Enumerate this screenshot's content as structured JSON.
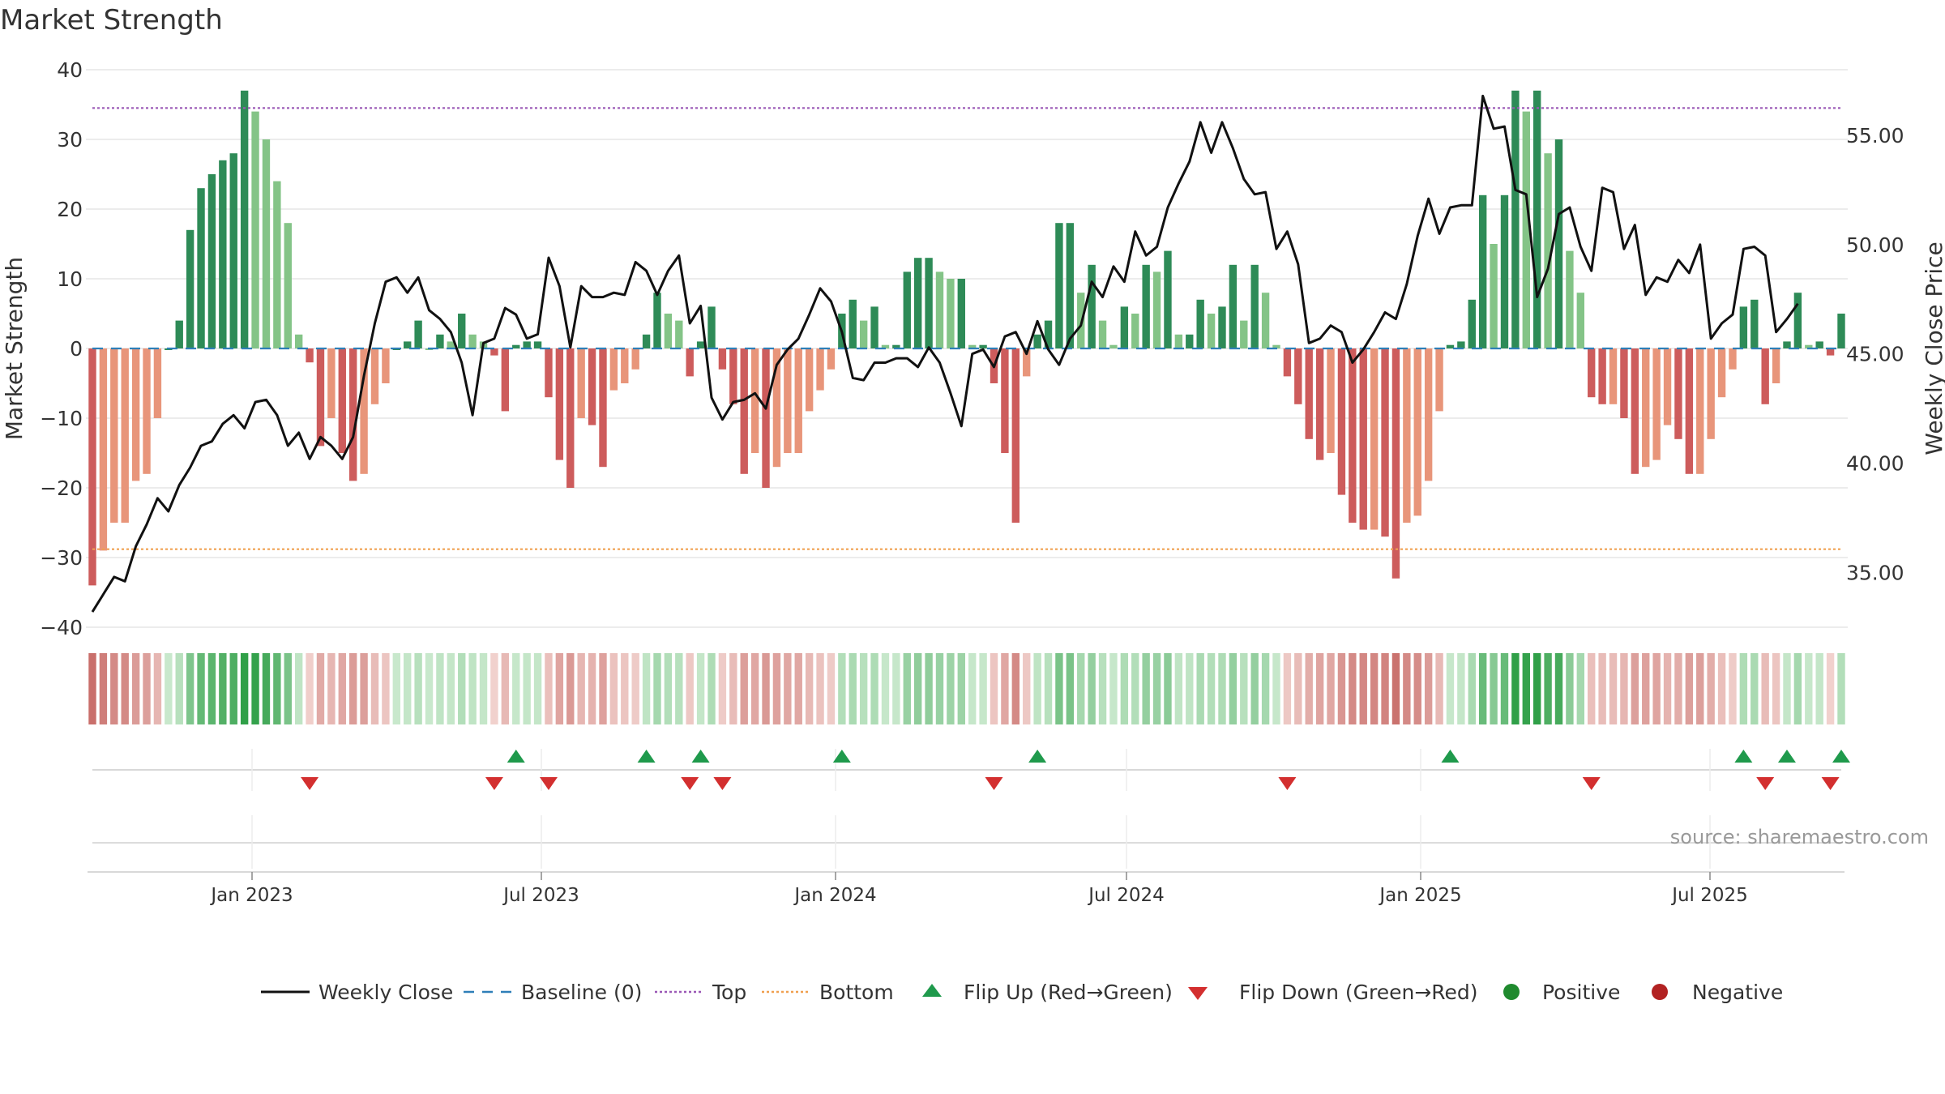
{
  "chart_data": {
    "type": "bar",
    "title": "Market Strength",
    "ylabel": "Market Strength",
    "y2label": "Weekly Close Price",
    "ylim": [
      -40,
      40
    ],
    "y2lim": [
      32.5,
      58.0
    ],
    "yticks": [
      "40",
      "30",
      "20",
      "10",
      "0",
      "−10",
      "−20",
      "−30",
      "−40"
    ],
    "y2ticks": [
      "55.00",
      "50.00",
      "45.00",
      "40.00",
      "35.00"
    ],
    "xticks": [
      "Jan 2023",
      "Jul 2023",
      "Jan 2024",
      "Jul 2024",
      "Jan 2025",
      "Jul 2025"
    ],
    "top_line": 34.5,
    "bottom_line": -28.8,
    "source": "source: sharemaestro.com",
    "legend": [
      "Weekly Close",
      "Baseline (0)",
      "Top",
      "Bottom",
      "Flip Up (Red→Green)",
      "Flip Down (Green→Red)",
      "Positive",
      "Negative"
    ],
    "weekly_strength": [
      -34,
      -29,
      -25,
      -25,
      -19,
      -18,
      -10,
      0,
      4,
      17,
      23,
      25,
      27,
      28,
      37,
      34,
      30,
      24,
      18,
      2,
      -2,
      -14,
      -10,
      -15,
      -19,
      -18,
      -8,
      -5,
      0,
      1,
      4,
      0,
      2,
      1,
      5,
      2,
      1,
      -1,
      -9,
      0.5,
      1,
      1,
      -7,
      -16,
      -20,
      -10,
      -11,
      -17,
      -6,
      -5,
      -3,
      2,
      8,
      5,
      4,
      -4,
      1,
      6,
      -3,
      -8,
      -18,
      -15,
      -20,
      -17,
      -15,
      -15,
      -9,
      -6,
      -3,
      5,
      7,
      4,
      6,
      0.5,
      0.5,
      11,
      13,
      13,
      11,
      10,
      10,
      0.5,
      0.5,
      -5,
      -15,
      -25,
      -4,
      2,
      4,
      18,
      18,
      8,
      12,
      4,
      0.5,
      6,
      5,
      12,
      11,
      14,
      2,
      2,
      7,
      5,
      6,
      12,
      4,
      12,
      8,
      0.5,
      -4,
      -8,
      -13,
      -16,
      -15,
      -21,
      -25,
      -26,
      -26,
      -27,
      -33,
      -25,
      -24,
      -19,
      -9,
      0.5,
      1,
      7,
      22,
      15,
      22,
      37,
      34,
      37,
      28,
      30,
      14,
      8,
      -7,
      -8,
      -8,
      -10,
      -18,
      -17,
      -16,
      -11,
      -13,
      -18,
      -18,
      -13,
      -7,
      -3,
      6,
      7,
      -8,
      -5,
      1,
      8,
      0.5,
      1,
      -1,
      5
    ],
    "weekly_close": [
      33.2,
      34.0,
      34.8,
      34.6,
      36.2,
      37.2,
      38.4,
      37.8,
      39.0,
      39.8,
      40.8,
      41.0,
      41.8,
      42.2,
      41.6,
      42.8,
      42.9,
      42.2,
      40.8,
      41.4,
      40.2,
      41.2,
      40.8,
      40.2,
      41.2,
      44.0,
      46.4,
      48.3,
      48.5,
      47.8,
      48.5,
      47.0,
      46.6,
      46.0,
      44.6,
      42.2,
      45.5,
      45.7,
      47.1,
      46.8,
      45.7,
      45.9,
      49.4,
      48.1,
      45.3,
      48.1,
      47.6,
      47.6,
      47.8,
      47.7,
      49.2,
      48.8,
      47.7,
      48.8,
      49.5,
      46.4,
      47.2,
      43.0,
      42.0,
      42.8,
      42.9,
      43.2,
      42.5,
      44.5,
      45.2,
      45.7,
      46.8,
      48.0,
      47.4,
      46.0,
      43.9,
      43.8,
      44.6,
      44.6,
      44.8,
      44.8,
      44.4,
      45.3,
      44.6,
      43.2,
      41.7,
      45.0,
      45.2,
      44.4,
      45.8,
      46.0,
      45.0,
      46.5,
      45.2,
      44.5,
      45.7,
      46.3,
      48.3,
      47.6,
      49.0,
      48.3,
      50.6,
      49.5,
      49.9,
      51.7,
      52.8,
      53.8,
      55.6,
      54.2,
      55.6,
      54.4,
      53.0,
      52.3,
      52.4,
      49.8,
      50.6,
      49.1,
      45.5,
      45.7,
      46.3,
      46.0,
      44.6,
      45.2,
      46.0,
      46.9,
      46.6,
      48.2,
      50.4,
      52.1,
      50.5,
      51.7,
      51.8,
      51.8,
      56.8,
      55.3,
      55.4,
      52.5,
      52.3,
      47.6,
      48.9,
      51.4,
      51.7,
      49.9,
      48.8,
      52.6,
      52.4,
      49.8,
      50.9,
      47.7,
      48.5,
      48.3,
      49.3,
      48.7,
      50.0,
      45.7,
      46.4,
      46.8,
      49.8,
      49.9,
      49.5,
      46.0,
      46.6,
      47.3
    ]
  }
}
